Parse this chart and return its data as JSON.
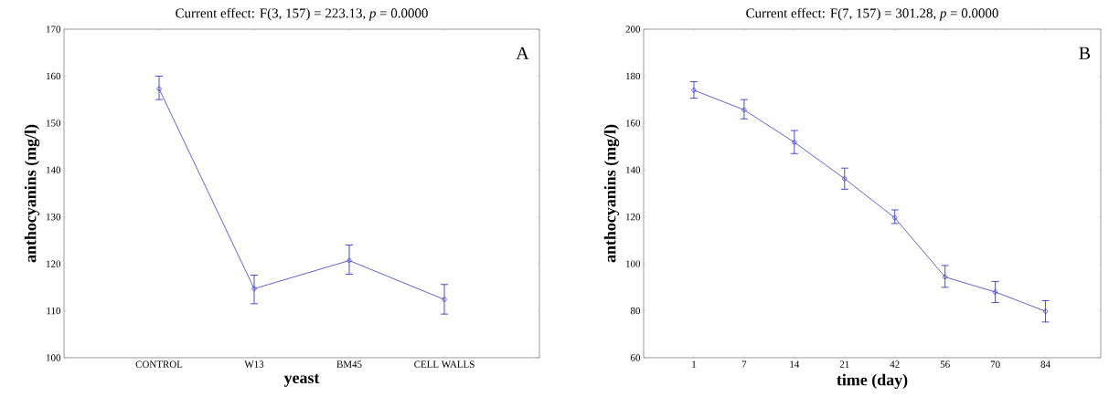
{
  "chart_data": [
    {
      "type": "line",
      "title": "Current effect: F(3, 157) = 223.13, *p* = 0.0000",
      "xlabel": "yeast",
      "ylabel": "anthocyanins (mg/l)",
      "categories": [
        "CONTROL",
        "W13",
        "BM45",
        "CELL WALLS"
      ],
      "ylim": [
        100,
        170
      ],
      "yticks": [
        100,
        110,
        120,
        130,
        140,
        150,
        160,
        170
      ],
      "annotations": [
        "A"
      ],
      "marker": "circle",
      "series": [
        {
          "color": "#3b3bbf",
          "values": [
            157.3,
            114.7,
            120.7,
            112.4
          ],
          "errors": [
            [
              155,
              160
            ],
            [
              111.5,
              117.6
            ],
            [
              117.8,
              124
            ],
            [
              109.3,
              115.6
            ]
          ]
        }
      ]
    },
    {
      "type": "line",
      "title": "Current effect: F(7, 157) = 301.28, *p* = 0.0000",
      "xlabel": "time (day)",
      "ylabel": "anthocyanins (mg/l)",
      "categories": [
        "1",
        "7",
        "14",
        "21",
        "42",
        "56",
        "70",
        "84"
      ],
      "ylim": [
        60,
        200
      ],
      "yticks": [
        60,
        80,
        100,
        120,
        140,
        160,
        180,
        200
      ],
      "annotations": [
        "B"
      ],
      "marker": "circle",
      "series": [
        {
          "color": "#3b3bbf",
          "values": [
            174,
            165.6,
            151.8,
            136.3,
            119.6,
            94.4,
            88,
            79.8
          ],
          "errors": [
            [
              170.6,
              177.6
            ],
            [
              161.8,
              170
            ],
            [
              147,
              156.8
            ],
            [
              131.8,
              140.8
            ],
            [
              117.2,
              123
            ],
            [
              90,
              99.3
            ],
            [
              83.5,
              92.5
            ],
            [
              75.2,
              84.3
            ]
          ]
        }
      ]
    }
  ]
}
